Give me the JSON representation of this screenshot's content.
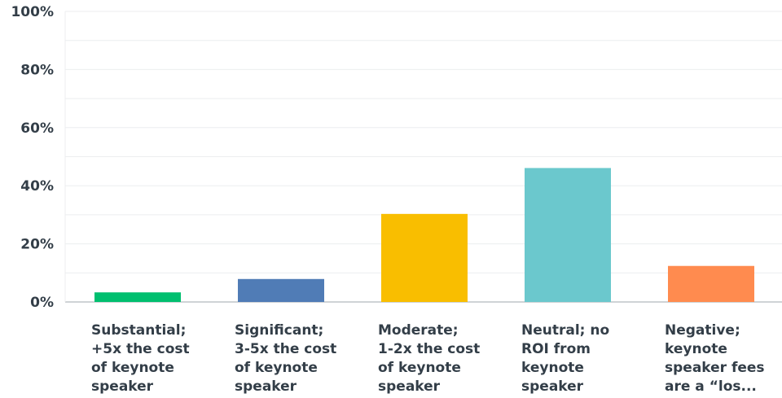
{
  "chart_data": {
    "type": "bar",
    "categories": [
      "Substantial;\n+5x the cost\nof keynote\nspeaker",
      "Significant;\n3-5x the cost\nof keynote\nspeaker",
      "Moderate;\n1-2x the cost\nof keynote\nspeaker",
      "Neutral; no\nROI from\nkeynote\nspeaker",
      "Negative;\nkeynote\nspeaker fees\nare a “los..."
    ],
    "values": [
      3.3,
      7.9,
      30.3,
      46.1,
      12.4
    ],
    "colors": [
      "#00bf6f",
      "#507cb6",
      "#f9be00",
      "#6bc8cd",
      "#ff8b4f"
    ],
    "yticks": [
      "0%",
      "20%",
      "40%",
      "60%",
      "80%",
      "100%"
    ],
    "ylim": [
      0,
      100
    ],
    "grid": true
  }
}
